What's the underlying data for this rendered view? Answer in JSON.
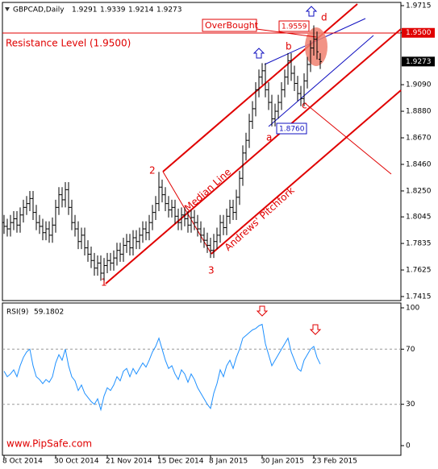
{
  "chart_data": [
    {
      "type": "ohlc",
      "title": "GBPCAD,Daily",
      "color": "#000000",
      "categories": [
        "8 Oct 2014",
        null,
        null,
        null,
        null,
        null,
        null,
        null,
        null,
        null,
        null,
        null,
        null,
        null,
        null,
        null,
        "30 Oct 2014",
        null,
        null,
        null,
        null,
        null,
        null,
        null,
        null,
        null,
        null,
        null,
        null,
        null,
        null,
        null,
        "21 Nov 2014",
        null,
        null,
        null,
        null,
        null,
        null,
        null,
        null,
        null,
        null,
        null,
        null,
        null,
        null,
        null,
        "15 Dec 2014",
        null,
        null,
        null,
        null,
        null,
        null,
        null,
        null,
        null,
        null,
        null,
        null,
        null,
        null,
        null,
        "8 Jan 2015",
        null,
        null,
        null,
        null,
        null,
        null,
        null,
        null,
        null,
        null,
        null,
        null,
        null,
        null,
        null,
        "30 Jan 2015",
        null,
        null,
        null,
        null,
        null,
        null,
        null,
        null,
        null,
        null,
        null,
        null,
        null,
        null,
        null,
        "23 Feb 2015",
        null,
        null
      ],
      "open": [
        1.8,
        1.797,
        1.795,
        1.8,
        1.803,
        1.798,
        1.806,
        1.812,
        1.815,
        1.819,
        1.808,
        1.8,
        1.797,
        1.792,
        1.795,
        1.79,
        1.798,
        1.812,
        1.822,
        1.818,
        1.826,
        1.812,
        1.8,
        1.795,
        1.785,
        1.79,
        1.78,
        1.775,
        1.77,
        1.764,
        1.768,
        1.76,
        1.766,
        1.77,
        1.768,
        1.772,
        1.778,
        1.775,
        1.782,
        1.785,
        1.78,
        1.788,
        1.785,
        1.79,
        1.795,
        1.792,
        1.8,
        1.808,
        1.815,
        1.828,
        1.822,
        1.815,
        1.81,
        1.812,
        1.805,
        1.8,
        1.806,
        1.803,
        1.798,
        1.804,
        1.8,
        1.795,
        1.79,
        1.786,
        1.782,
        1.778,
        1.785,
        1.79,
        1.8,
        1.796,
        1.805,
        1.812,
        1.808,
        1.82,
        1.835,
        1.855,
        1.865,
        1.88,
        1.89,
        1.905,
        1.915,
        1.92,
        1.905,
        1.895,
        1.882,
        1.888,
        1.895,
        1.905,
        1.915,
        1.928,
        1.918,
        1.91,
        1.902,
        1.898,
        1.912,
        1.925,
        1.938,
        1.945,
        1.9291
      ],
      "high": [
        1.806,
        1.803,
        1.806,
        1.809,
        1.809,
        1.812,
        1.818,
        1.821,
        1.825,
        1.825,
        1.814,
        1.806,
        1.803,
        1.801,
        1.801,
        1.804,
        1.818,
        1.828,
        1.828,
        1.832,
        1.832,
        1.818,
        1.806,
        1.801,
        1.796,
        1.796,
        1.786,
        1.781,
        1.776,
        1.774,
        1.774,
        1.772,
        1.776,
        1.776,
        1.778,
        1.784,
        1.784,
        1.788,
        1.791,
        1.791,
        1.794,
        1.794,
        1.796,
        1.801,
        1.801,
        1.806,
        1.814,
        1.821,
        1.84,
        1.834,
        1.828,
        1.821,
        1.818,
        1.818,
        1.811,
        1.812,
        1.812,
        1.809,
        1.81,
        1.81,
        1.806,
        1.801,
        1.796,
        1.792,
        1.788,
        1.791,
        1.796,
        1.806,
        1.806,
        1.811,
        1.818,
        1.818,
        1.826,
        1.841,
        1.861,
        1.871,
        1.886,
        1.896,
        1.911,
        1.921,
        1.926,
        1.926,
        1.911,
        1.901,
        1.894,
        1.901,
        1.911,
        1.921,
        1.934,
        1.934,
        1.924,
        1.916,
        1.908,
        1.918,
        1.931,
        1.944,
        1.9559,
        1.951,
        1.9339
      ],
      "low": [
        1.791,
        1.789,
        1.789,
        1.794,
        1.792,
        1.792,
        1.8,
        1.806,
        1.809,
        1.802,
        1.794,
        1.791,
        1.786,
        1.786,
        1.784,
        1.784,
        1.792,
        1.806,
        1.812,
        1.812,
        1.806,
        1.794,
        1.789,
        1.779,
        1.779,
        1.774,
        1.769,
        1.764,
        1.758,
        1.758,
        1.754,
        1.754,
        1.76,
        1.762,
        1.762,
        1.766,
        1.769,
        1.769,
        1.776,
        1.774,
        1.774,
        1.779,
        1.779,
        1.784,
        1.786,
        1.786,
        1.794,
        1.802,
        1.809,
        1.816,
        1.809,
        1.804,
        1.804,
        1.799,
        1.794,
        1.794,
        1.797,
        1.792,
        1.792,
        1.794,
        1.789,
        1.784,
        1.78,
        1.776,
        1.772,
        1.772,
        1.779,
        1.784,
        1.79,
        1.79,
        1.799,
        1.802,
        1.802,
        1.814,
        1.829,
        1.849,
        1.859,
        1.874,
        1.884,
        1.899,
        1.909,
        1.899,
        1.889,
        1.876,
        1.876,
        1.882,
        1.889,
        1.899,
        1.909,
        1.912,
        1.904,
        1.896,
        1.892,
        1.892,
        1.906,
        1.919,
        1.932,
        1.929,
        1.9214
      ],
      "close": [
        1.797,
        1.795,
        1.8,
        1.803,
        1.798,
        1.806,
        1.812,
        1.815,
        1.819,
        1.808,
        1.8,
        1.797,
        1.792,
        1.795,
        1.79,
        1.798,
        1.812,
        1.822,
        1.818,
        1.826,
        1.812,
        1.8,
        1.795,
        1.785,
        1.79,
        1.78,
        1.775,
        1.77,
        1.764,
        1.768,
        1.76,
        1.766,
        1.77,
        1.768,
        1.772,
        1.778,
        1.775,
        1.782,
        1.785,
        1.78,
        1.788,
        1.785,
        1.79,
        1.795,
        1.792,
        1.8,
        1.808,
        1.815,
        1.828,
        1.822,
        1.815,
        1.81,
        1.812,
        1.805,
        1.8,
        1.806,
        1.803,
        1.798,
        1.804,
        1.8,
        1.795,
        1.79,
        1.786,
        1.782,
        1.778,
        1.785,
        1.79,
        1.8,
        1.796,
        1.805,
        1.812,
        1.808,
        1.82,
        1.835,
        1.855,
        1.865,
        1.88,
        1.89,
        1.905,
        1.915,
        1.92,
        1.905,
        1.895,
        1.882,
        1.888,
        1.895,
        1.905,
        1.915,
        1.928,
        1.918,
        1.91,
        1.902,
        1.898,
        1.912,
        1.925,
        1.938,
        1.945,
        1.935,
        1.9273
      ],
      "ylim": [
        1.7415,
        1.9715
      ],
      "yticks": [
        1.9715,
        {
          "value": 1.95,
          "label": "1.9500"
        },
        {
          "value": 1.909,
          "label": "1.9090"
        },
        {
          "value": 1.888,
          "label": "1.8880"
        },
        {
          "value": 1.867,
          "label": "1.8670"
        },
        {
          "value": 1.846,
          "label": "1.8460"
        },
        {
          "value": 1.825,
          "label": "1.8250"
        },
        1.8045,
        1.7835,
        1.7625,
        1.7415
      ],
      "resistance_level": 1.95,
      "annotations": {
        "resistance": "Resistance Level (1.9500)",
        "overbought": "OverBought",
        "high_label": "1.9559",
        "low_label": "1.8760",
        "median": "Median Line",
        "pitchfork": "Andrews' Pitchfork",
        "points": [
          "1",
          "2",
          "3",
          "a",
          "b",
          "c",
          "d"
        ]
      }
    },
    {
      "type": "line",
      "title": "RSI(9)",
      "color": "#1e90ff",
      "values": [
        54,
        50,
        52,
        55,
        50,
        58,
        64,
        68,
        70,
        58,
        50,
        48,
        45,
        48,
        46,
        50,
        60,
        66,
        62,
        70,
        58,
        50,
        47,
        40,
        44,
        38,
        35,
        32,
        30,
        34,
        26,
        36,
        42,
        40,
        44,
        50,
        47,
        54,
        56,
        50,
        56,
        52,
        56,
        60,
        57,
        62,
        68,
        72,
        78,
        70,
        62,
        56,
        58,
        52,
        48,
        55,
        52,
        46,
        52,
        48,
        42,
        38,
        34,
        30,
        27,
        38,
        45,
        55,
        50,
        58,
        62,
        56,
        64,
        70,
        78,
        80,
        82,
        84,
        85,
        87,
        88,
        74,
        66,
        58,
        62,
        66,
        70,
        74,
        78,
        68,
        62,
        56,
        54,
        62,
        66,
        70,
        72,
        64,
        59.1802
      ],
      "ylim": [
        0,
        100
      ],
      "yticks": [
        100,
        70,
        30,
        0
      ]
    }
  ],
  "watermark": "www.PipSafe.com"
}
